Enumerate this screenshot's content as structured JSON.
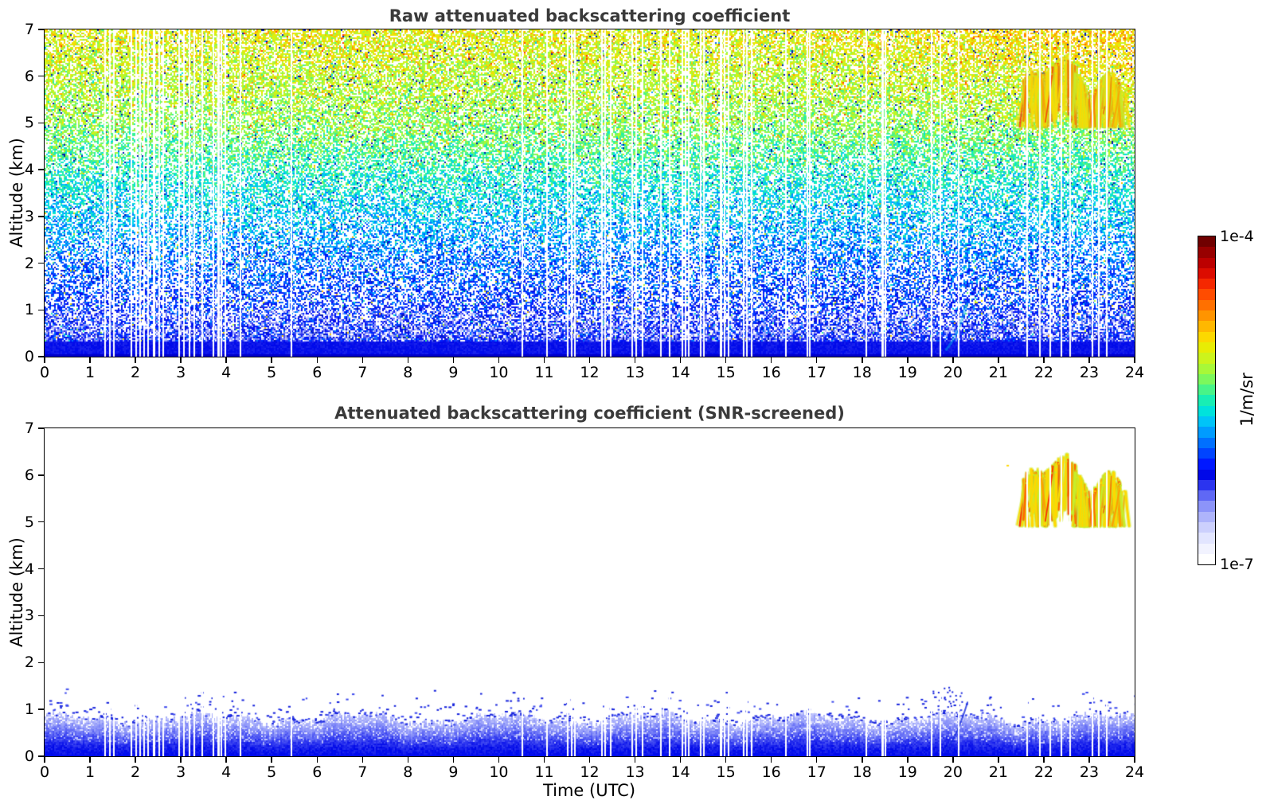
{
  "figure": {
    "background": "#ffffff",
    "x_axis": {
      "label": "Time (UTC)",
      "min": 0,
      "max": 24,
      "ticks": [
        0,
        1,
        2,
        3,
        4,
        5,
        6,
        7,
        8,
        9,
        10,
        11,
        12,
        13,
        14,
        15,
        16,
        17,
        18,
        19,
        20,
        21,
        22,
        23,
        24
      ]
    },
    "y_axis": {
      "label": "Altitude (km)",
      "min": 0,
      "max": 7,
      "ticks": [
        0,
        1,
        2,
        3,
        4,
        5,
        6,
        7
      ]
    },
    "colorbar": {
      "max_label": "1e-4",
      "min_label": "1e-7",
      "unit_label": "1/m/sr",
      "scale": "log",
      "stops_bottom_to_top": [
        "#ffffff",
        "#f2f3ff",
        "#e2e5ff",
        "#ccd0fd",
        "#aeb4fb",
        "#8c94f9",
        "#5f68f5",
        "#2b34ef",
        "#0008e8",
        "#0018ff",
        "#0044ff",
        "#0070ff",
        "#009cff",
        "#00c4f8",
        "#00e2dc",
        "#18eeb4",
        "#48f488",
        "#7cf85c",
        "#a8f838",
        "#ccf41c",
        "#e8ec04",
        "#fcd800",
        "#ffb800",
        "#ff9400",
        "#ff7000",
        "#ff4c00",
        "#f52800",
        "#dc0c00",
        "#bc0000",
        "#980000",
        "#700000"
      ]
    }
  },
  "chart_data": [
    {
      "type": "heatmap",
      "panel": "top",
      "title": "Raw attenuated backscattering coefficient",
      "xlabel": "",
      "ylabel": "Altitude (km)",
      "x_range": [
        0,
        24
      ],
      "y_range": [
        0,
        7
      ],
      "units": "1/m/sr",
      "value_scale": "log",
      "value_range": [
        "1e-7",
        "1e-4"
      ],
      "description": "Noisy raw lidar backscatter speckle: saturated blue layer below ~0.3 km, dense blue 0.3-1 km with pale patches, blue-cyan speckle 1-3 km, cyan-green 3-5 km, yellow-green with orange flecks 5-7 km, scattered navy dots throughout; fall-streak cloud 21.5-23.9 UTC at 4.9-6.5 km; white vertical data-gap stripes.",
      "noise_seed": 42,
      "altitude_color_profile": [
        [
          0,
          0.26
        ],
        [
          1,
          0.3
        ],
        [
          2,
          0.36
        ],
        [
          3,
          0.43
        ],
        [
          4,
          0.5
        ],
        [
          5,
          0.58
        ],
        [
          6,
          0.62
        ],
        [
          7,
          0.66
        ]
      ],
      "white_fraction_profile": [
        [
          0,
          0
        ],
        [
          0.31,
          0.08
        ],
        [
          0.6,
          0.3
        ],
        [
          1.2,
          0.48
        ],
        [
          2.5,
          0.48
        ],
        [
          4,
          0.4
        ],
        [
          5.5,
          0.35
        ],
        [
          7,
          0.32
        ]
      ],
      "solid_blue_below_km": 0.31
    },
    {
      "type": "heatmap",
      "panel": "bottom",
      "title": "Attenuated backscattering coefficient (SNR-screened)",
      "xlabel": "Time (UTC)",
      "ylabel": "Altitude (km)",
      "x_range": [
        0,
        24
      ],
      "y_range": [
        0,
        7
      ],
      "units": "1/m/sr",
      "value_scale": "log",
      "value_range": [
        "1e-7",
        "1e-4"
      ],
      "description": "SNR-screened backscatter: white background, ragged blue boundary layer 0-~0.95 km (deep blue base fading to pale lavender top with light streaky patches), sparse blue speckles to ~1.4 km, faint blue diagonal plume near 20 UTC, yellow-orange fall-streak cloud 21.5-23.85 UTC at 4.9-6.5 km.",
      "noise_seed": 99,
      "boundary_layer": {
        "mean_top_km": 0.8,
        "top_variation_km": 0.18,
        "base_color": "#0008e8",
        "top_color": "#aeb4fb"
      }
    }
  ],
  "cloud_feature": {
    "t_start": 21.55,
    "t_end": 23.83,
    "alt_base_km": 4.92,
    "alt_top_km": 6.5,
    "peak_time": 22.3,
    "seed": 7,
    "streak_count": 150,
    "colors": {
      "fringe": "#c6ee2a",
      "main": "#ffd800",
      "warm": "#ffa000",
      "hot": "#ff6a00",
      "core": "#ff2d00"
    }
  },
  "diagonal_feature": {
    "t_start": 19.85,
    "t_end": 20.32,
    "alt_start_km": 0.15,
    "alt_end_km": 1.15
  },
  "data_gaps_utc": [
    [
      1.32,
      2
    ],
    [
      1.42,
      2
    ],
    [
      1.5,
      2
    ],
    [
      1.9,
      2
    ],
    [
      2.0,
      2
    ],
    [
      2.08,
      2
    ],
    [
      2.17,
      2
    ],
    [
      2.27,
      2
    ],
    [
      2.38,
      3
    ],
    [
      2.5,
      2
    ],
    [
      2.6,
      2
    ],
    [
      2.95,
      2
    ],
    [
      3.05,
      2
    ],
    [
      3.17,
      2
    ],
    [
      3.28,
      2
    ],
    [
      3.45,
      2
    ],
    [
      3.7,
      2
    ],
    [
      3.8,
      3
    ],
    [
      3.88,
      2
    ],
    [
      3.97,
      2
    ],
    [
      4.3,
      2
    ],
    [
      5.42,
      2
    ],
    [
      10.5,
      2
    ],
    [
      11.05,
      2
    ],
    [
      11.5,
      2
    ],
    [
      11.58,
      2
    ],
    [
      11.65,
      2
    ],
    [
      12.25,
      2
    ],
    [
      12.33,
      2
    ],
    [
      12.45,
      2
    ],
    [
      12.92,
      2
    ],
    [
      13.0,
      2
    ],
    [
      13.15,
      2
    ],
    [
      13.55,
      2
    ],
    [
      13.75,
      2
    ],
    [
      14.02,
      2
    ],
    [
      14.1,
      2
    ],
    [
      14.17,
      2
    ],
    [
      14.42,
      2
    ],
    [
      14.5,
      2
    ],
    [
      14.87,
      3
    ],
    [
      14.95,
      2
    ],
    [
      15.05,
      2
    ],
    [
      15.37,
      2
    ],
    [
      15.45,
      2
    ],
    [
      15.55,
      2
    ],
    [
      16.3,
      2
    ],
    [
      16.77,
      2
    ],
    [
      16.83,
      2
    ],
    [
      18.07,
      2
    ],
    [
      18.42,
      3
    ],
    [
      18.5,
      2
    ],
    [
      19.52,
      2
    ],
    [
      19.7,
      2
    ],
    [
      20.1,
      2
    ],
    [
      21.62,
      2
    ],
    [
      21.9,
      2
    ],
    [
      22.12,
      2
    ],
    [
      22.37,
      2
    ],
    [
      22.57,
      2
    ],
    [
      23.05,
      2
    ],
    [
      23.2,
      2
    ],
    [
      23.37,
      2
    ]
  ]
}
